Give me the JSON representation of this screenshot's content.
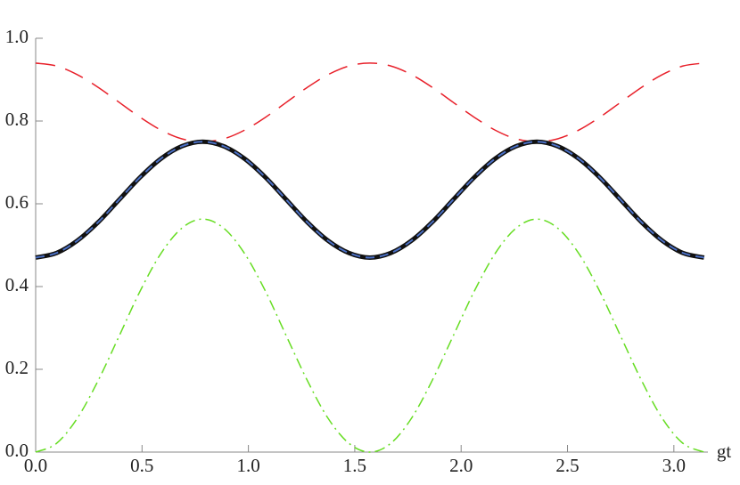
{
  "chart_data": {
    "type": "line",
    "x_label": "gt",
    "x": [
      0,
      0.098,
      0.196,
      0.295,
      0.393,
      0.491,
      0.589,
      0.687,
      0.785,
      0.884,
      0.982,
      1.08,
      1.178,
      1.276,
      1.374,
      1.473,
      1.571,
      1.669,
      1.767,
      1.865,
      1.963,
      2.062,
      2.16,
      2.258,
      2.356,
      2.454,
      2.553,
      2.651,
      2.749,
      2.847,
      2.945,
      3.043,
      3.142
    ],
    "series": [
      {
        "color": "#e8202a",
        "dash": "22 12",
        "width": 1.5,
        "values": [
          0.94,
          0.933,
          0.912,
          0.881,
          0.845,
          0.809,
          0.778,
          0.757,
          0.75,
          0.757,
          0.778,
          0.809,
          0.845,
          0.881,
          0.912,
          0.933,
          0.94,
          0.933,
          0.912,
          0.881,
          0.845,
          0.809,
          0.778,
          0.757,
          0.75,
          0.757,
          0.778,
          0.809,
          0.845,
          0.881,
          0.912,
          0.933,
          0.94
        ]
      },
      {
        "color": "#111111",
        "dash": "none",
        "width": 5,
        "values": [
          0.47,
          0.481,
          0.511,
          0.556,
          0.61,
          0.664,
          0.709,
          0.739,
          0.75,
          0.739,
          0.709,
          0.664,
          0.61,
          0.556,
          0.511,
          0.481,
          0.47,
          0.481,
          0.511,
          0.556,
          0.61,
          0.664,
          0.709,
          0.739,
          0.75,
          0.739,
          0.709,
          0.664,
          0.61,
          0.556,
          0.511,
          0.481,
          0.47
        ]
      },
      {
        "color": "#4a6fc4",
        "dash": "10 6",
        "width": 2,
        "values": [
          0.47,
          0.481,
          0.511,
          0.556,
          0.61,
          0.664,
          0.709,
          0.739,
          0.75,
          0.739,
          0.709,
          0.664,
          0.61,
          0.556,
          0.511,
          0.481,
          0.47,
          0.481,
          0.511,
          0.556,
          0.61,
          0.664,
          0.709,
          0.739,
          0.75,
          0.739,
          0.709,
          0.664,
          0.61,
          0.556,
          0.511,
          0.481,
          0.47
        ]
      },
      {
        "color": "#66dd22",
        "dash": "12 5 2 5",
        "width": 1.5,
        "values": [
          0,
          0.021,
          0.082,
          0.174,
          0.281,
          0.389,
          0.48,
          0.541,
          0.563,
          0.541,
          0.48,
          0.389,
          0.281,
          0.174,
          0.082,
          0.021,
          0,
          0.021,
          0.082,
          0.174,
          0.281,
          0.389,
          0.48,
          0.541,
          0.563,
          0.541,
          0.48,
          0.389,
          0.281,
          0.174,
          0.082,
          0.021,
          0
        ]
      }
    ],
    "xlim": [
      0,
      3.16
    ],
    "ylim": [
      0,
      1
    ],
    "xticks": [
      {
        "value": 0,
        "label": "0.0"
      },
      0.5,
      {
        "value": 1,
        "label": "1.0"
      },
      1.5,
      {
        "value": 2,
        "label": "2.0"
      },
      2.5,
      {
        "value": 3,
        "label": "3.0"
      }
    ],
    "yticks": [
      {
        "value": 0,
        "label": "0.0"
      },
      0.2,
      0.4,
      0.6,
      0.8,
      {
        "value": 1,
        "label": "1.0"
      }
    ],
    "grid": false
  }
}
